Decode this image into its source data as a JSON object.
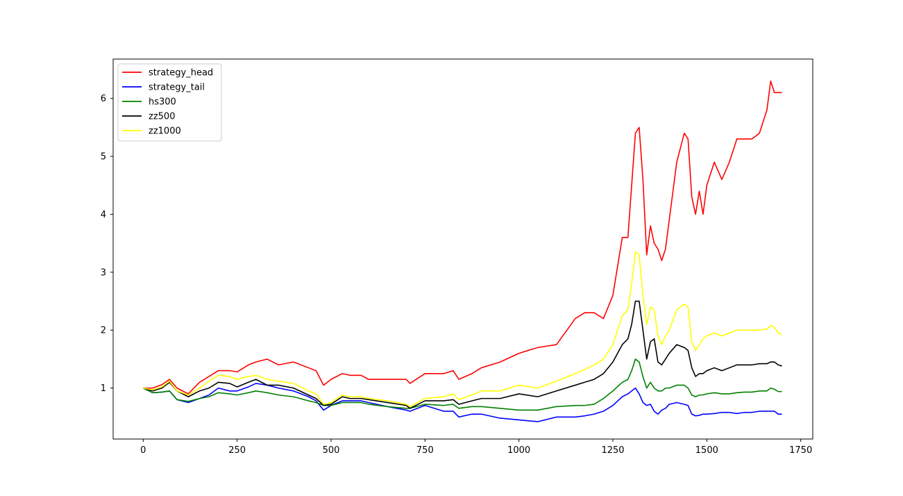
{
  "chart_data": {
    "type": "line",
    "title": "",
    "xlabel": "",
    "ylabel": "",
    "xlim": [
      -80,
      1782
    ],
    "ylim": [
      0.12,
      6.68
    ],
    "xticks": [
      0,
      250,
      500,
      750,
      1000,
      1250,
      1500,
      1750
    ],
    "xtick_labels": [
      "0",
      "250",
      "500",
      "750",
      "1000",
      "1250",
      "1500",
      "1750"
    ],
    "yticks": [
      1,
      2,
      3,
      4,
      5,
      6
    ],
    "ytick_labels": [
      "1",
      "2",
      "3",
      "4",
      "5",
      "6"
    ],
    "grid": false,
    "legend_position": "top-left",
    "x": [
      0,
      25,
      50,
      70,
      90,
      120,
      150,
      175,
      200,
      230,
      250,
      280,
      300,
      330,
      360,
      400,
      440,
      460,
      480,
      500,
      530,
      550,
      580,
      600,
      650,
      700,
      710,
      750,
      800,
      825,
      840,
      875,
      900,
      950,
      1000,
      1050,
      1100,
      1150,
      1175,
      1200,
      1225,
      1250,
      1275,
      1290,
      1300,
      1310,
      1320,
      1330,
      1340,
      1350,
      1360,
      1370,
      1380,
      1390,
      1400,
      1420,
      1440,
      1450,
      1460,
      1470,
      1480,
      1490,
      1500,
      1520,
      1540,
      1560,
      1580,
      1600,
      1620,
      1640,
      1660,
      1670,
      1680,
      1690,
      1700
    ],
    "series": [
      {
        "name": "strategy_head",
        "color": "#ff0000",
        "values": [
          1.0,
          1.0,
          1.06,
          1.15,
          1.0,
          0.9,
          1.1,
          1.2,
          1.3,
          1.3,
          1.28,
          1.4,
          1.45,
          1.5,
          1.4,
          1.45,
          1.35,
          1.3,
          1.05,
          1.15,
          1.25,
          1.22,
          1.22,
          1.15,
          1.15,
          1.15,
          1.08,
          1.25,
          1.25,
          1.3,
          1.15,
          1.25,
          1.35,
          1.45,
          1.6,
          1.7,
          1.75,
          2.2,
          2.3,
          2.3,
          2.2,
          2.6,
          3.6,
          3.6,
          4.5,
          5.4,
          5.5,
          4.6,
          3.3,
          3.8,
          3.5,
          3.4,
          3.2,
          3.4,
          3.9,
          4.9,
          5.4,
          5.3,
          4.3,
          4.0,
          4.4,
          4.0,
          4.5,
          4.9,
          4.6,
          4.9,
          5.3,
          5.3,
          5.3,
          5.4,
          5.8,
          6.3,
          6.1,
          6.1,
          6.1
        ]
      },
      {
        "name": "strategy_tail",
        "color": "#0000ff",
        "values": [
          1.0,
          0.92,
          0.93,
          0.95,
          0.8,
          0.75,
          0.82,
          0.88,
          1.0,
          0.95,
          0.95,
          1.02,
          1.08,
          1.05,
          1.0,
          0.95,
          0.85,
          0.78,
          0.62,
          0.7,
          0.78,
          0.78,
          0.78,
          0.75,
          0.68,
          0.62,
          0.6,
          0.7,
          0.6,
          0.6,
          0.5,
          0.55,
          0.55,
          0.48,
          0.45,
          0.42,
          0.5,
          0.5,
          0.52,
          0.55,
          0.6,
          0.7,
          0.85,
          0.9,
          0.95,
          1.0,
          0.9,
          0.75,
          0.7,
          0.72,
          0.6,
          0.55,
          0.62,
          0.65,
          0.72,
          0.75,
          0.72,
          0.7,
          0.55,
          0.52,
          0.53,
          0.55,
          0.55,
          0.56,
          0.58,
          0.58,
          0.56,
          0.58,
          0.58,
          0.6,
          0.6,
          0.6,
          0.6,
          0.55,
          0.55
        ]
      },
      {
        "name": "hs300",
        "color": "#008000",
        "values": [
          1.0,
          0.92,
          0.93,
          0.95,
          0.8,
          0.77,
          0.82,
          0.85,
          0.92,
          0.9,
          0.88,
          0.92,
          0.95,
          0.92,
          0.88,
          0.85,
          0.78,
          0.75,
          0.7,
          0.7,
          0.75,
          0.75,
          0.75,
          0.72,
          0.68,
          0.65,
          0.65,
          0.72,
          0.7,
          0.72,
          0.65,
          0.68,
          0.68,
          0.65,
          0.62,
          0.62,
          0.68,
          0.7,
          0.7,
          0.72,
          0.82,
          0.95,
          1.1,
          1.15,
          1.3,
          1.5,
          1.45,
          1.2,
          1.0,
          1.1,
          1.0,
          0.95,
          0.95,
          1.0,
          1.0,
          1.05,
          1.05,
          1.0,
          0.88,
          0.85,
          0.88,
          0.88,
          0.9,
          0.92,
          0.9,
          0.9,
          0.92,
          0.93,
          0.93,
          0.95,
          0.95,
          1.0,
          0.98,
          0.94,
          0.94
        ]
      },
      {
        "name": "zz500",
        "color": "#000000",
        "values": [
          1.0,
          0.95,
          1.0,
          1.1,
          0.95,
          0.85,
          0.95,
          1.0,
          1.1,
          1.08,
          1.02,
          1.1,
          1.15,
          1.05,
          1.05,
          1.0,
          0.88,
          0.82,
          0.7,
          0.72,
          0.85,
          0.82,
          0.82,
          0.8,
          0.75,
          0.7,
          0.65,
          0.78,
          0.78,
          0.8,
          0.72,
          0.78,
          0.82,
          0.82,
          0.9,
          0.85,
          0.95,
          1.05,
          1.1,
          1.15,
          1.25,
          1.45,
          1.75,
          1.85,
          2.1,
          2.5,
          2.5,
          2.0,
          1.5,
          1.8,
          1.85,
          1.45,
          1.4,
          1.5,
          1.6,
          1.75,
          1.7,
          1.65,
          1.35,
          1.2,
          1.25,
          1.25,
          1.3,
          1.35,
          1.3,
          1.35,
          1.4,
          1.4,
          1.4,
          1.42,
          1.42,
          1.45,
          1.45,
          1.4,
          1.38
        ]
      },
      {
        "name": "zz1000",
        "color": "#ffff00",
        "values": [
          1.0,
          0.97,
          1.02,
          1.12,
          0.95,
          0.88,
          1.0,
          1.12,
          1.22,
          1.2,
          1.15,
          1.2,
          1.22,
          1.15,
          1.12,
          1.08,
          0.95,
          0.9,
          0.72,
          0.75,
          0.88,
          0.85,
          0.85,
          0.82,
          0.78,
          0.72,
          0.68,
          0.82,
          0.85,
          0.9,
          0.8,
          0.88,
          0.95,
          0.95,
          1.05,
          1.0,
          1.12,
          1.25,
          1.32,
          1.4,
          1.5,
          1.75,
          2.25,
          2.35,
          2.8,
          3.35,
          3.3,
          2.6,
          2.1,
          2.4,
          2.35,
          1.9,
          1.75,
          1.9,
          2.0,
          2.35,
          2.45,
          2.4,
          1.8,
          1.65,
          1.75,
          1.85,
          1.9,
          1.95,
          1.9,
          1.95,
          2.0,
          2.0,
          2.0,
          2.0,
          2.02,
          2.08,
          2.05,
          1.95,
          1.92
        ]
      }
    ]
  }
}
